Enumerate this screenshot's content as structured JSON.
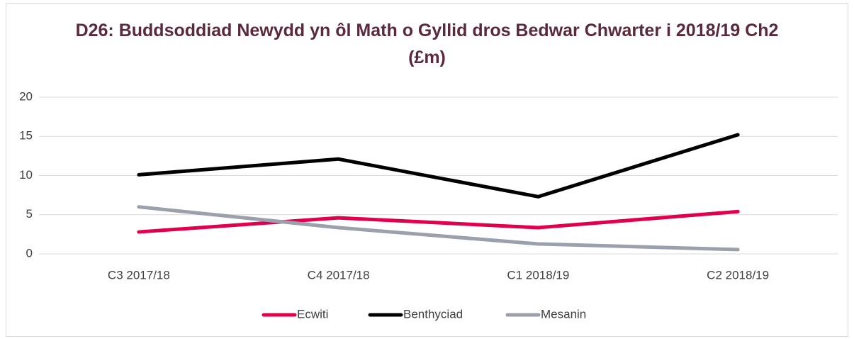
{
  "chart_data": {
    "type": "line",
    "title": "D26: Buddsoddiad Newydd yn ôl Math o Gyllid dros Bedwar Chwarter i 2018/19 Ch2 (£m)",
    "categories": [
      "C3 2017/18",
      "C4 2017/18",
      "C1 2018/19",
      "C2 2018/19"
    ],
    "series": [
      {
        "name": "Ecwiti",
        "color": "#e0004d",
        "values": [
          2.8,
          4.6,
          3.35,
          5.4
        ]
      },
      {
        "name": "Benthyciad",
        "color": "#000000",
        "values": [
          10.1,
          12.1,
          7.3,
          15.2
        ]
      },
      {
        "name": "Mesanin",
        "color": "#9ba1ac",
        "values": [
          6.0,
          3.35,
          1.27,
          0.55
        ]
      }
    ],
    "ylim": [
      0,
      20
    ],
    "yticks": [
      0,
      5,
      10,
      15,
      20
    ],
    "grid": true,
    "legend": "bottom"
  }
}
